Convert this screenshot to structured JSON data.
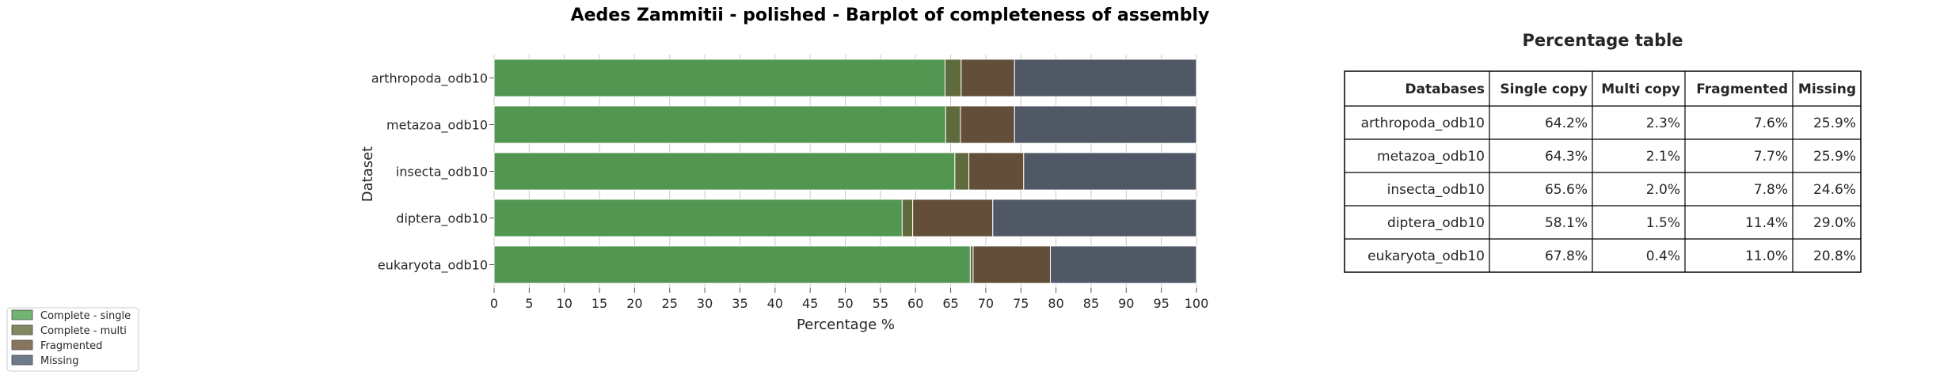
{
  "chart_data": [
    {
      "type": "bar",
      "orientation": "horizontal",
      "stacked": true,
      "title": "Aedes Zammitii - polished - Barplot of completeness of assembly",
      "xlabel": "Percentage %",
      "ylabel": "Dataset",
      "xlim": [
        0,
        100
      ],
      "xticks": [
        "0",
        "5",
        "10",
        "15",
        "20",
        "25",
        "30",
        "35",
        "40",
        "45",
        "50",
        "55",
        "60",
        "65",
        "70",
        "75",
        "80",
        "85",
        "90",
        "95",
        "100"
      ],
      "categories": [
        "arthropoda_odb10",
        "metazoa_odb10",
        "insecta_odb10",
        "diptera_odb10",
        "eukaryota_odb10"
      ],
      "series": [
        {
          "name": "Complete - single",
          "color": "#529652",
          "legend_color": "#72b472",
          "values": [
            64.2,
            64.3,
            65.6,
            58.1,
            67.8
          ]
        },
        {
          "name": "Complete - multi",
          "color": "#5f6a3d",
          "legend_color": "#80895f",
          "values": [
            2.3,
            2.1,
            2.0,
            1.5,
            0.4
          ]
        },
        {
          "name": "Fragmented",
          "color": "#624e39",
          "legend_color": "#87755e",
          "values": [
            7.6,
            7.7,
            7.8,
            11.4,
            11.0
          ]
        },
        {
          "name": "Missing",
          "color": "#505866",
          "legend_color": "#6c7a8a",
          "values": [
            25.9,
            25.9,
            24.6,
            29.0,
            20.8
          ]
        }
      ],
      "legend_position": "bottom-left",
      "grid": true
    },
    {
      "type": "table",
      "title": "Percentage table",
      "columns": [
        "Databases",
        "Single copy",
        "Multi copy",
        "Fragmented",
        "Missing"
      ],
      "rows": [
        [
          "arthropoda_odb10",
          "64.2%",
          "2.3%",
          "7.6%",
          "25.9%"
        ],
        [
          "metazoa_odb10",
          "64.3%",
          "2.1%",
          "7.7%",
          "25.9%"
        ],
        [
          "insecta_odb10",
          "65.6%",
          "2.0%",
          "7.8%",
          "24.6%"
        ],
        [
          "diptera_odb10",
          "58.1%",
          "1.5%",
          "11.4%",
          "29.0%"
        ],
        [
          "eukaryota_odb10",
          "67.8%",
          "0.4%",
          "11.0%",
          "20.8%"
        ]
      ]
    }
  ]
}
